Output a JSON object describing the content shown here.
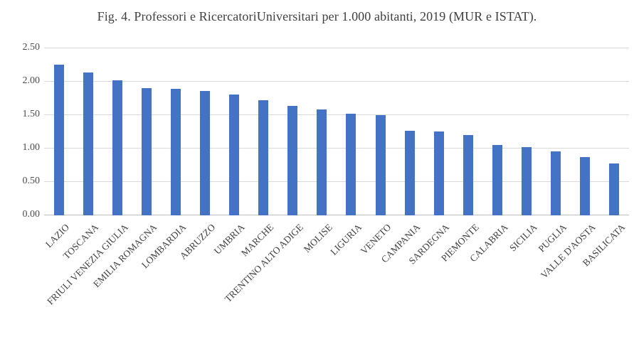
{
  "chart_data": {
    "type": "bar",
    "title": "Fig. 4. Professori e RicercatoriUniversitari per 1.000 abitanti, 2019 (MUR e ISTAT).",
    "categories": [
      "LAZIO",
      "TOSCANA",
      "FRIULI VENEZIA GIULIA",
      "EMILIA ROMAGNA",
      "LOMBARDIA",
      "ABRUZZO",
      "UMBRIA",
      "MARCHE",
      "TRENTINO ALTO ADIGE",
      "MOLISE",
      "LIGURIA",
      "VENETO",
      "CAMPANIA",
      "SARDEGNA",
      "PIEMONTE",
      "CALABRIA",
      "SICILIA",
      "PUGLIA",
      "VALLE D'AOSTA",
      "BASILICATA"
    ],
    "values": [
      2.26,
      2.14,
      2.02,
      1.9,
      1.89,
      1.86,
      1.81,
      1.72,
      1.64,
      1.59,
      1.52,
      1.5,
      1.27,
      1.26,
      1.2,
      1.05,
      1.02,
      0.96,
      0.87,
      0.78
    ],
    "xlabel": "",
    "ylabel": "",
    "ylim": [
      0,
      2.5
    ],
    "yticks": [
      0,
      0.5,
      1,
      1.5,
      2,
      2.5
    ],
    "ytick_labels": [
      "0.00",
      "0.50",
      "1.00",
      "1.50",
      "2.00",
      "2.50"
    ],
    "grid": true,
    "legend": "none",
    "bar_color": "#4472C4",
    "gridline_color": "#D9D9D9",
    "baseline_color": "#BFBFBF",
    "title_color": "#404040",
    "axis_text_color": "#4D4D4D"
  }
}
